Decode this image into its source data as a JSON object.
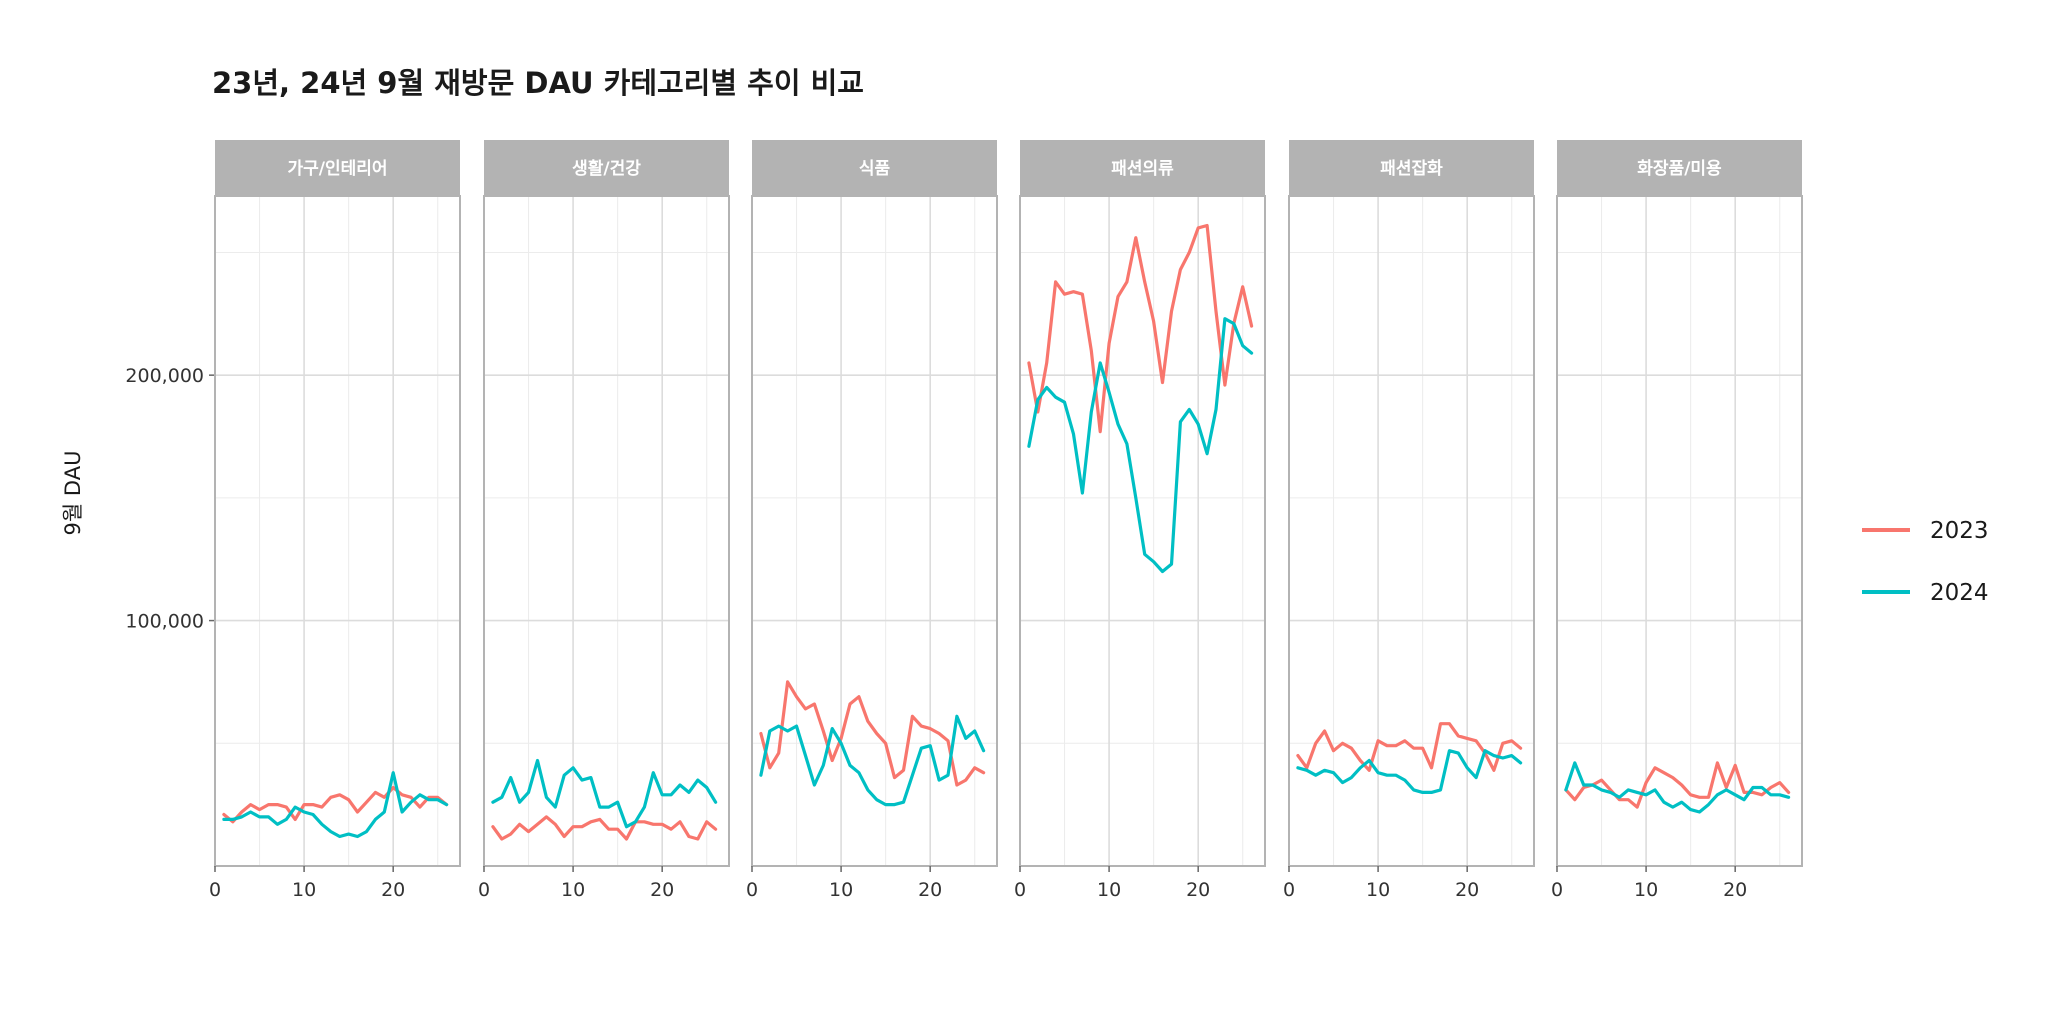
{
  "chart_data": {
    "type": "line",
    "title": "23년, 24년 9월 재방문 DAU 카테고리별 추이 비교",
    "ylabel": "9월 DAU",
    "xlabel": "",
    "x_ticks": [
      0,
      10,
      20
    ],
    "y_ticks": [
      100000,
      200000
    ],
    "y_tick_labels": [
      "100,000",
      "200,000"
    ],
    "xlim": [
      0,
      27.5
    ],
    "ylim": [
      0,
      273000
    ],
    "grid": true,
    "legend": {
      "position": "right",
      "entries": [
        {
          "name": "2023",
          "color": "#F8766D"
        },
        {
          "name": "2024",
          "color": "#00BFC4"
        }
      ]
    },
    "facets": [
      {
        "name": "가구/인테리어",
        "series": [
          {
            "name": "2023",
            "color": "#F8766D",
            "values": [
              21000,
              18000,
              22000,
              25000,
              23000,
              25000,
              25000,
              24000,
              19000,
              25000,
              25000,
              24000,
              28000,
              29000,
              27000,
              22000,
              26000,
              30000,
              28000,
              32000,
              29000,
              28000,
              24000,
              28000,
              28000,
              25000
            ]
          },
          {
            "name": "2024",
            "color": "#00BFC4",
            "values": [
              19000,
              19000,
              20000,
              22000,
              20000,
              20000,
              17000,
              19000,
              24000,
              22000,
              21000,
              17000,
              14000,
              12000,
              13000,
              12000,
              14000,
              19000,
              22000,
              38000,
              22000,
              26000,
              29000,
              27000,
              27000,
              25000
            ]
          }
        ]
      },
      {
        "name": "생활/건강",
        "series": [
          {
            "name": "2023",
            "color": "#F8766D",
            "values": [
              16000,
              11000,
              13000,
              17000,
              14000,
              17000,
              20000,
              17000,
              12000,
              16000,
              16000,
              18000,
              19000,
              15000,
              15000,
              11000,
              18000,
              18000,
              17000,
              17000,
              15000,
              18000,
              12000,
              11000,
              18000,
              15000
            ]
          },
          {
            "name": "2024",
            "color": "#00BFC4",
            "values": [
              26000,
              28000,
              36000,
              26000,
              30000,
              43000,
              28000,
              24000,
              37000,
              40000,
              35000,
              36000,
              24000,
              24000,
              26000,
              16000,
              18000,
              24000,
              38000,
              29000,
              29000,
              33000,
              30000,
              35000,
              32000,
              26000
            ]
          }
        ]
      },
      {
        "name": "식품",
        "series": [
          {
            "name": "2023",
            "color": "#F8766D",
            "values": [
              54000,
              40000,
              46000,
              75000,
              69000,
              64000,
              66000,
              55000,
              43000,
              52000,
              66000,
              69000,
              59000,
              54000,
              50000,
              36000,
              39000,
              61000,
              57000,
              56000,
              54000,
              51000,
              33000,
              35000,
              40000,
              38000
            ]
          },
          {
            "name": "2024",
            "color": "#00BFC4",
            "values": [
              37000,
              55000,
              57000,
              55000,
              57000,
              45000,
              33000,
              41000,
              56000,
              50000,
              41000,
              38000,
              31000,
              27000,
              25000,
              25000,
              26000,
              37000,
              48000,
              49000,
              35000,
              37000,
              61000,
              52000,
              55000,
              47000
            ]
          }
        ]
      },
      {
        "name": "패션의류",
        "series": [
          {
            "name": "2023",
            "color": "#F8766D",
            "values": [
              205000,
              185000,
              205000,
              238000,
              233000,
              234000,
              233000,
              210000,
              177000,
              213000,
              232000,
              238000,
              256000,
              238000,
              222000,
              197000,
              226000,
              243000,
              250000,
              260000,
              261000,
              226000,
              196000,
              221000,
              236000,
              220000
            ]
          },
          {
            "name": "2024",
            "color": "#00BFC4",
            "values": [
              171000,
              190000,
              195000,
              191000,
              189000,
              176000,
              152000,
              185000,
              205000,
              193000,
              180000,
              172000,
              150000,
              127000,
              124000,
              120000,
              123000,
              181000,
              186000,
              180000,
              168000,
              186000,
              223000,
              221000,
              212000,
              209000
            ]
          }
        ]
      },
      {
        "name": "패션잡화",
        "series": [
          {
            "name": "2023",
            "color": "#F8766D",
            "values": [
              45000,
              40000,
              50000,
              55000,
              47000,
              50000,
              48000,
              43000,
              39000,
              51000,
              49000,
              49000,
              51000,
              48000,
              48000,
              40000,
              58000,
              58000,
              53000,
              52000,
              51000,
              46000,
              39000,
              50000,
              51000,
              48000
            ]
          },
          {
            "name": "2024",
            "color": "#00BFC4",
            "values": [
              40000,
              39000,
              37000,
              39000,
              38000,
              34000,
              36000,
              40000,
              43000,
              38000,
              37000,
              37000,
              35000,
              31000,
              30000,
              30000,
              31000,
              47000,
              46000,
              40000,
              36000,
              47000,
              45000,
              44000,
              45000,
              42000
            ]
          }
        ]
      },
      {
        "name": "화장품/미용",
        "series": [
          {
            "name": "2023",
            "color": "#F8766D",
            "values": [
              31000,
              27000,
              32000,
              33000,
              35000,
              31000,
              27000,
              27000,
              24000,
              34000,
              40000,
              38000,
              36000,
              33000,
              29000,
              28000,
              28000,
              42000,
              32000,
              41000,
              30000,
              30000,
              29000,
              32000,
              34000,
              30000
            ]
          },
          {
            "name": "2024",
            "color": "#00BFC4",
            "values": [
              31000,
              42000,
              33000,
              33000,
              31000,
              30000,
              28000,
              31000,
              30000,
              29000,
              31000,
              26000,
              24000,
              26000,
              23000,
              22000,
              25000,
              29000,
              31000,
              29000,
              27000,
              32000,
              32000,
              29000,
              29000,
              28000
            ]
          }
        ]
      }
    ]
  }
}
